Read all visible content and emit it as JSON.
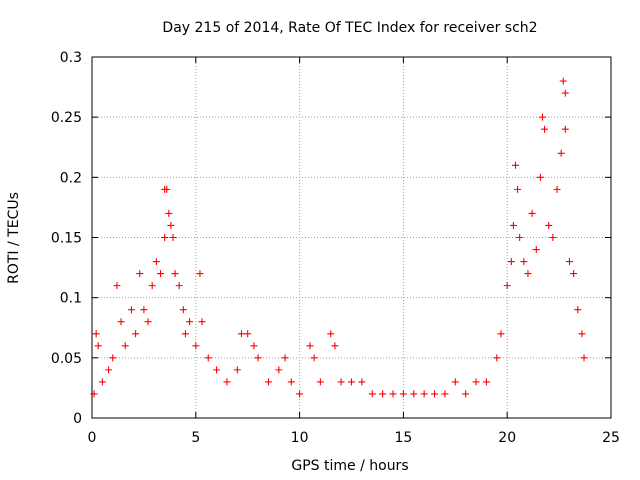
{
  "chart_data": {
    "type": "scatter",
    "title": "Day 215 of 2014, Rate Of TEC Index for receiver sch2",
    "xlabel": "GPS time / hours",
    "ylabel": "ROTI / TECUs",
    "xlim": [
      0,
      25
    ],
    "ylim": [
      0,
      0.3
    ],
    "xticks": [
      "0",
      "5",
      "10",
      "15",
      "20",
      "25"
    ],
    "yticks": [
      "0",
      "0.05",
      "0.1",
      "0.15",
      "0.2",
      "0.25",
      "0.3"
    ],
    "grid": true,
    "marker": "+",
    "color": "#ff0000",
    "series": [
      {
        "name": "ROTI",
        "points": [
          [
            0.1,
            0.02
          ],
          [
            0.2,
            0.07
          ],
          [
            0.3,
            0.06
          ],
          [
            0.5,
            0.03
          ],
          [
            0.8,
            0.04
          ],
          [
            1.0,
            0.05
          ],
          [
            1.2,
            0.11
          ],
          [
            1.4,
            0.08
          ],
          [
            1.6,
            0.06
          ],
          [
            1.9,
            0.09
          ],
          [
            2.1,
            0.07
          ],
          [
            2.3,
            0.12
          ],
          [
            2.5,
            0.09
          ],
          [
            2.7,
            0.08
          ],
          [
            2.9,
            0.11
          ],
          [
            3.1,
            0.13
          ],
          [
            3.3,
            0.12
          ],
          [
            3.5,
            0.15
          ],
          [
            3.5,
            0.19
          ],
          [
            3.6,
            0.19
          ],
          [
            3.7,
            0.17
          ],
          [
            3.8,
            0.16
          ],
          [
            3.9,
            0.15
          ],
          [
            4.0,
            0.12
          ],
          [
            4.2,
            0.11
          ],
          [
            4.4,
            0.09
          ],
          [
            4.5,
            0.07
          ],
          [
            4.7,
            0.08
          ],
          [
            5.0,
            0.06
          ],
          [
            5.2,
            0.12
          ],
          [
            5.3,
            0.08
          ],
          [
            5.6,
            0.05
          ],
          [
            6.0,
            0.04
          ],
          [
            6.5,
            0.03
          ],
          [
            7.0,
            0.04
          ],
          [
            7.2,
            0.07
          ],
          [
            7.5,
            0.07
          ],
          [
            7.8,
            0.06
          ],
          [
            8.0,
            0.05
          ],
          [
            8.5,
            0.03
          ],
          [
            9.0,
            0.04
          ],
          [
            9.3,
            0.05
          ],
          [
            9.6,
            0.03
          ],
          [
            10.0,
            0.02
          ],
          [
            10.5,
            0.06
          ],
          [
            10.7,
            0.05
          ],
          [
            11.0,
            0.03
          ],
          [
            11.5,
            0.07
          ],
          [
            11.7,
            0.06
          ],
          [
            12.0,
            0.03
          ],
          [
            12.5,
            0.03
          ],
          [
            13.0,
            0.03
          ],
          [
            13.5,
            0.02
          ],
          [
            14.0,
            0.02
          ],
          [
            14.5,
            0.02
          ],
          [
            15.0,
            0.02
          ],
          [
            15.5,
            0.02
          ],
          [
            16.0,
            0.02
          ],
          [
            16.5,
            0.02
          ],
          [
            17.0,
            0.02
          ],
          [
            17.5,
            0.03
          ],
          [
            18.0,
            0.02
          ],
          [
            18.5,
            0.03
          ],
          [
            19.0,
            0.03
          ],
          [
            19.5,
            0.05
          ],
          [
            19.7,
            0.07
          ],
          [
            20.0,
            0.11
          ],
          [
            20.2,
            0.13
          ],
          [
            20.3,
            0.16
          ],
          [
            20.4,
            0.21
          ],
          [
            20.5,
            0.19
          ],
          [
            20.6,
            0.15
          ],
          [
            20.8,
            0.13
          ],
          [
            21.0,
            0.12
          ],
          [
            21.2,
            0.17
          ],
          [
            21.4,
            0.14
          ],
          [
            21.6,
            0.2
          ],
          [
            21.7,
            0.25
          ],
          [
            21.8,
            0.24
          ],
          [
            22.0,
            0.16
          ],
          [
            22.2,
            0.15
          ],
          [
            22.4,
            0.19
          ],
          [
            22.6,
            0.22
          ],
          [
            22.7,
            0.28
          ],
          [
            22.8,
            0.27
          ],
          [
            22.8,
            0.24
          ],
          [
            23.0,
            0.13
          ],
          [
            23.2,
            0.12
          ],
          [
            23.4,
            0.09
          ],
          [
            23.6,
            0.07
          ],
          [
            23.7,
            0.05
          ]
        ]
      }
    ]
  }
}
